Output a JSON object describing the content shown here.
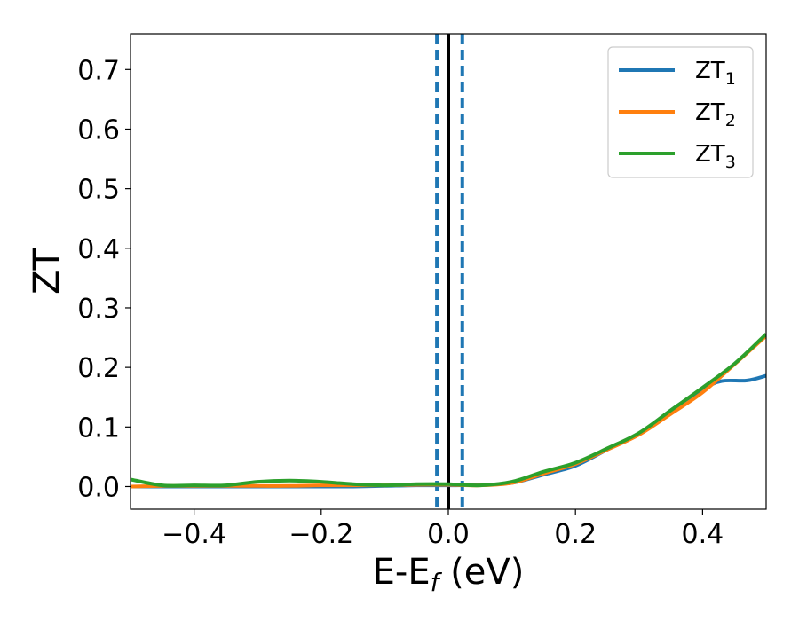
{
  "chart_data": {
    "type": "line",
    "title": "",
    "xlabel": {
      "main": "E-E",
      "sub": "f",
      "tail": " (eV)"
    },
    "ylabel": "ZT",
    "xlim": [
      -0.5,
      0.5
    ],
    "ylim": [
      -0.038,
      0.76
    ],
    "xticks": [
      -0.4,
      -0.2,
      0.0,
      0.2,
      0.4
    ],
    "xtick_labels": [
      "−0.4",
      "−0.2",
      "0.0",
      "0.2",
      "0.4"
    ],
    "yticks": [
      0.0,
      0.1,
      0.2,
      0.3,
      0.4,
      0.5,
      0.6,
      0.7
    ],
    "ytick_labels": [
      "0.0",
      "0.1",
      "0.2",
      "0.3",
      "0.4",
      "0.5",
      "0.6",
      "0.7"
    ],
    "grid": false,
    "legend_position": "top-right",
    "vlines": [
      {
        "x": 0.0,
        "style": "solid",
        "color": "#000000"
      },
      {
        "x": -0.018,
        "style": "dashed",
        "color": "#1f77b4"
      },
      {
        "x": 0.022,
        "style": "dashed",
        "color": "#1f77b4"
      }
    ],
    "series": [
      {
        "name": "ZT",
        "name_sub": "1",
        "color": "#1f77b4",
        "x": [
          -0.5,
          -0.45,
          -0.4,
          -0.35,
          -0.3,
          -0.25,
          -0.2,
          -0.15,
          -0.1,
          -0.05,
          0.0,
          0.05,
          0.1,
          0.15,
          0.2,
          0.25,
          0.3,
          0.35,
          0.4,
          0.43,
          0.47,
          0.5
        ],
        "y": [
          0.0,
          0.0,
          0.0,
          0.0,
          0.0,
          0.0,
          0.0,
          0.0,
          0.001,
          0.002,
          0.002,
          0.003,
          0.006,
          0.02,
          0.035,
          0.062,
          0.088,
          0.128,
          0.163,
          0.177,
          0.178,
          0.186
        ]
      },
      {
        "name": "ZT",
        "name_sub": "2",
        "color": "#ff7f0e",
        "x": [
          -0.5,
          -0.45,
          -0.4,
          -0.35,
          -0.3,
          -0.25,
          -0.2,
          -0.15,
          -0.1,
          -0.05,
          0.0,
          0.05,
          0.1,
          0.15,
          0.2,
          0.25,
          0.3,
          0.35,
          0.4,
          0.45,
          0.5
        ],
        "y": [
          0.0,
          0.001,
          0.001,
          0.001,
          0.001,
          0.001,
          0.002,
          0.002,
          0.002,
          0.003,
          0.003,
          0.002,
          0.006,
          0.022,
          0.038,
          0.062,
          0.087,
          0.122,
          0.158,
          0.205,
          0.253
        ]
      },
      {
        "name": "ZT",
        "name_sub": "3",
        "color": "#2ca02c",
        "x": [
          -0.5,
          -0.45,
          -0.4,
          -0.35,
          -0.3,
          -0.25,
          -0.2,
          -0.15,
          -0.1,
          -0.05,
          0.0,
          0.05,
          0.1,
          0.15,
          0.2,
          0.25,
          0.3,
          0.35,
          0.4,
          0.45,
          0.5
        ],
        "y": [
          0.012,
          0.002,
          0.002,
          0.002,
          0.008,
          0.01,
          0.008,
          0.004,
          0.002,
          0.004,
          0.004,
          0.002,
          0.008,
          0.025,
          0.04,
          0.064,
          0.09,
          0.128,
          0.166,
          0.206,
          0.256
        ]
      }
    ]
  }
}
